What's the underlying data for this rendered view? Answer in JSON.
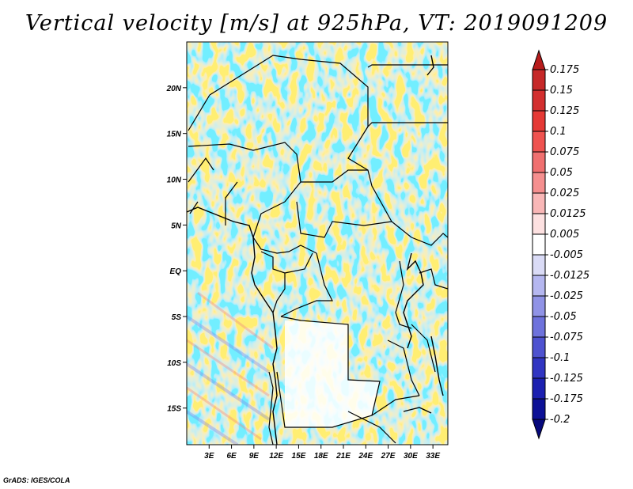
{
  "title": "Vertical velocity [m/s] at 925hPa, VT: 2019091209",
  "credit": "GrADS: IGES/COLA",
  "chart_data": {
    "type": "heatmap",
    "variable": "Vertical velocity",
    "units": "m/s",
    "level": "925hPa",
    "valid_time": "2019091209",
    "lon_range": [
      0,
      35
    ],
    "lat_range": [
      -19,
      25
    ],
    "x_ticks": [
      "3E",
      "6E",
      "9E",
      "12E",
      "15E",
      "18E",
      "21E",
      "24E",
      "27E",
      "30E",
      "33E"
    ],
    "x_tick_values": [
      3,
      6,
      9,
      12,
      15,
      18,
      21,
      24,
      27,
      30,
      33
    ],
    "y_ticks": [
      "20N",
      "15N",
      "10N",
      "5N",
      "EQ",
      "5S",
      "10S",
      "15S"
    ],
    "y_tick_values": [
      20,
      15,
      10,
      5,
      0,
      -5,
      -10,
      -15
    ],
    "colorbar": {
      "labels": [
        "0.175",
        "0.15",
        "0.125",
        "0.1",
        "0.075",
        "0.05",
        "0.025",
        "0.0125",
        "0.005",
        "-0.005",
        "-0.0125",
        "-0.025",
        "-0.05",
        "-0.075",
        "-0.1",
        "-0.125",
        "-0.175",
        "-0.2"
      ],
      "colors": [
        "#b71c1c",
        "#c62828",
        "#d32f2f",
        "#e53935",
        "#ef5350",
        "#f07070",
        "#f58f8f",
        "#f9b7b7",
        "#fde1e1",
        "#ffffff",
        "#dadbf6",
        "#b5b7f0",
        "#9093e6",
        "#6e72dc",
        "#4e52d0",
        "#3135c2",
        "#1c20b0",
        "#0d1196",
        "#06087c"
      ]
    }
  }
}
